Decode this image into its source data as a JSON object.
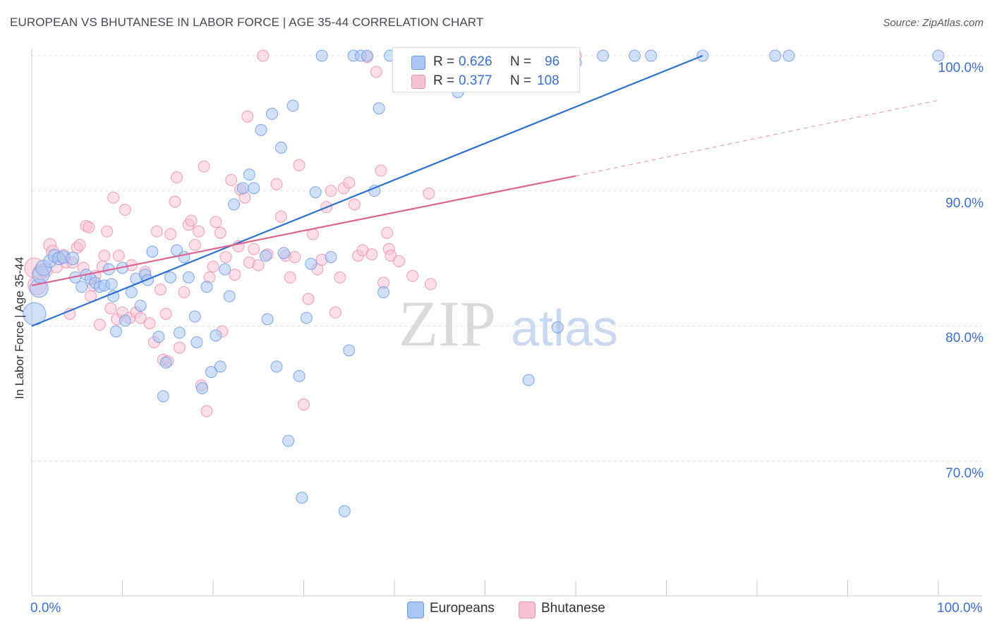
{
  "title": "EUROPEAN VS BHUTANESE IN LABOR FORCE | AGE 35-44 CORRELATION CHART",
  "source": "Source: ZipAtlas.com",
  "watermark": {
    "zip": "ZIP",
    "atlas": "atlas"
  },
  "colors": {
    "europeans": "#6b9be6",
    "europeans_fill": "#a9c6f3",
    "europeans_line": "#2f6fcf",
    "bhutanese": "#ee8fb0",
    "bhutanese_fill": "#f7c3d4",
    "bhutanese_line": "#e0648f",
    "axis_text": "#3a6fcf",
    "grid": "#e3e3e3"
  },
  "legend": {
    "r_label": "R =",
    "n_label": "N =",
    "europeans": {
      "r": "0.626",
      "n": "96"
    },
    "bhutanese": {
      "r": "0.377",
      "n": "108"
    }
  },
  "bottom_legend": {
    "europeans": "Europeans",
    "bhutanese": "Bhutanese"
  },
  "chart_data": {
    "type": "scatter",
    "title": "EUROPEAN VS BHUTANESE IN LABOR FORCE | AGE 35-44 CORRELATION CHART",
    "xlabel": "",
    "ylabel": "In Labor Force | Age 35-44",
    "xlim": [
      0,
      100
    ],
    "ylim": [
      60,
      102
    ],
    "x_tick_labels": [
      "0.0%",
      "100.0%"
    ],
    "y_ticks": [
      70,
      80,
      90,
      100
    ],
    "y_tick_labels": [
      "70.0%",
      "80.0%",
      "90.0%",
      "100.0%"
    ],
    "grid": true,
    "series": [
      {
        "name": "Europeans",
        "r": 0.626,
        "n": 96,
        "trend": {
          "x": [
            0,
            74
          ],
          "y": [
            80.0,
            100.0
          ]
        },
        "points": [
          {
            "x": 0.3,
            "y": 80.9,
            "s": 16
          },
          {
            "x": 0.8,
            "y": 82.8,
            "s": 13
          },
          {
            "x": 1.0,
            "y": 83.8,
            "s": 12
          },
          {
            "x": 1.3,
            "y": 84.3,
            "s": 11
          },
          {
            "x": 2.0,
            "y": 84.8,
            "s": 9
          },
          {
            "x": 2.5,
            "y": 85.2,
            "s": 9
          },
          {
            "x": 3.0,
            "y": 85.0,
            "s": 9
          },
          {
            "x": 3.5,
            "y": 85.1,
            "s": 9
          },
          {
            "x": 4.5,
            "y": 85.0,
            "s": 9
          },
          {
            "x": 4.8,
            "y": 83.6,
            "s": 8
          },
          {
            "x": 5.5,
            "y": 82.9,
            "s": 8
          },
          {
            "x": 6.0,
            "y": 83.8,
            "s": 8
          },
          {
            "x": 6.5,
            "y": 83.5,
            "s": 8
          },
          {
            "x": 7.0,
            "y": 83.2,
            "s": 8
          },
          {
            "x": 7.5,
            "y": 82.9,
            "s": 8
          },
          {
            "x": 8.0,
            "y": 83.0,
            "s": 8
          },
          {
            "x": 8.5,
            "y": 84.2,
            "s": 8
          },
          {
            "x": 8.8,
            "y": 83.1,
            "s": 8
          },
          {
            "x": 9.0,
            "y": 82.2,
            "s": 8
          },
          {
            "x": 9.3,
            "y": 79.6,
            "s": 8
          },
          {
            "x": 10.0,
            "y": 84.3,
            "s": 8
          },
          {
            "x": 10.3,
            "y": 80.4,
            "s": 8
          },
          {
            "x": 11.0,
            "y": 82.5,
            "s": 8
          },
          {
            "x": 11.5,
            "y": 83.5,
            "s": 8
          },
          {
            "x": 12.0,
            "y": 81.5,
            "s": 8
          },
          {
            "x": 12.5,
            "y": 83.8,
            "s": 8
          },
          {
            "x": 12.8,
            "y": 83.4,
            "s": 8
          },
          {
            "x": 13.3,
            "y": 85.5,
            "s": 8
          },
          {
            "x": 14.0,
            "y": 79.2,
            "s": 8
          },
          {
            "x": 14.5,
            "y": 74.8,
            "s": 8
          },
          {
            "x": 14.8,
            "y": 77.3,
            "s": 8
          },
          {
            "x": 15.3,
            "y": 83.6,
            "s": 8
          },
          {
            "x": 16.0,
            "y": 85.6,
            "s": 8
          },
          {
            "x": 16.3,
            "y": 79.5,
            "s": 8
          },
          {
            "x": 16.8,
            "y": 85.1,
            "s": 8
          },
          {
            "x": 17.3,
            "y": 83.6,
            "s": 8
          },
          {
            "x": 18.0,
            "y": 80.7,
            "s": 8
          },
          {
            "x": 18.2,
            "y": 78.8,
            "s": 8
          },
          {
            "x": 18.8,
            "y": 75.4,
            "s": 8
          },
          {
            "x": 19.3,
            "y": 82.9,
            "s": 8
          },
          {
            "x": 19.8,
            "y": 76.6,
            "s": 8
          },
          {
            "x": 20.3,
            "y": 79.3,
            "s": 8
          },
          {
            "x": 20.8,
            "y": 77.0,
            "s": 8
          },
          {
            "x": 21.3,
            "y": 84.2,
            "s": 8
          },
          {
            "x": 21.8,
            "y": 82.2,
            "s": 8
          },
          {
            "x": 22.3,
            "y": 89.0,
            "s": 8
          },
          {
            "x": 23.3,
            "y": 90.2,
            "s": 8
          },
          {
            "x": 24.0,
            "y": 91.2,
            "s": 8
          },
          {
            "x": 24.5,
            "y": 90.2,
            "s": 8
          },
          {
            "x": 25.3,
            "y": 94.5,
            "s": 8
          },
          {
            "x": 25.8,
            "y": 85.2,
            "s": 8
          },
          {
            "x": 26.0,
            "y": 80.5,
            "s": 8
          },
          {
            "x": 26.5,
            "y": 95.7,
            "s": 8
          },
          {
            "x": 27.0,
            "y": 77.0,
            "s": 8
          },
          {
            "x": 27.5,
            "y": 93.2,
            "s": 8
          },
          {
            "x": 27.8,
            "y": 85.4,
            "s": 8
          },
          {
            "x": 28.3,
            "y": 71.5,
            "s": 8
          },
          {
            "x": 28.8,
            "y": 96.3,
            "s": 8
          },
          {
            "x": 29.5,
            "y": 76.3,
            "s": 8
          },
          {
            "x": 29.8,
            "y": 67.3,
            "s": 8
          },
          {
            "x": 30.3,
            "y": 80.6,
            "s": 8
          },
          {
            "x": 30.8,
            "y": 84.6,
            "s": 8
          },
          {
            "x": 31.3,
            "y": 89.9,
            "s": 8
          },
          {
            "x": 32.0,
            "y": 100.0,
            "s": 8
          },
          {
            "x": 33.0,
            "y": 85.1,
            "s": 8
          },
          {
            "x": 34.5,
            "y": 66.3,
            "s": 8
          },
          {
            "x": 35.0,
            "y": 78.2,
            "s": 8
          },
          {
            "x": 35.5,
            "y": 100.0,
            "s": 8
          },
          {
            "x": 36.3,
            "y": 100.0,
            "s": 8
          },
          {
            "x": 37.0,
            "y": 100.0,
            "s": 8
          },
          {
            "x": 37.8,
            "y": 90.0,
            "s": 8
          },
          {
            "x": 38.3,
            "y": 96.1,
            "s": 8
          },
          {
            "x": 38.8,
            "y": 82.5,
            "s": 8
          },
          {
            "x": 39.5,
            "y": 100.0,
            "s": 8
          },
          {
            "x": 40.5,
            "y": 100.0,
            "s": 8
          },
          {
            "x": 42.0,
            "y": 100.0,
            "s": 8
          },
          {
            "x": 45.0,
            "y": 100.0,
            "s": 8
          },
          {
            "x": 47.0,
            "y": 97.3,
            "s": 8
          },
          {
            "x": 49.0,
            "y": 100.0,
            "s": 8
          },
          {
            "x": 51.5,
            "y": 100.0,
            "s": 8
          },
          {
            "x": 54.0,
            "y": 100.0,
            "s": 8
          },
          {
            "x": 54.8,
            "y": 76.0,
            "s": 8
          },
          {
            "x": 55.8,
            "y": 100.0,
            "s": 8
          },
          {
            "x": 58.0,
            "y": 79.9,
            "s": 8
          },
          {
            "x": 60.0,
            "y": 99.5,
            "s": 8
          },
          {
            "x": 63.0,
            "y": 100.0,
            "s": 8
          },
          {
            "x": 66.5,
            "y": 100.0,
            "s": 8
          },
          {
            "x": 68.3,
            "y": 100.0,
            "s": 8
          },
          {
            "x": 74.0,
            "y": 100.0,
            "s": 8
          },
          {
            "x": 82.0,
            "y": 100.0,
            "s": 8
          },
          {
            "x": 83.5,
            "y": 100.0,
            "s": 8
          },
          {
            "x": 100.0,
            "y": 100.0,
            "s": 8
          }
        ]
      },
      {
        "name": "Bhutanese",
        "r": 0.377,
        "n": 108,
        "trend": {
          "x": [
            0,
            60
          ],
          "y": [
            83.0,
            91.1
          ]
        },
        "trend_extension": {
          "x": [
            60,
            100
          ],
          "y": [
            91.1,
            96.7
          ]
        },
        "points": [
          {
            "x": 0.3,
            "y": 84.3,
            "s": 14
          },
          {
            "x": 0.6,
            "y": 83.0,
            "s": 13
          },
          {
            "x": 1.0,
            "y": 84.0,
            "s": 11
          },
          {
            "x": 1.5,
            "y": 84.1,
            "s": 10
          },
          {
            "x": 2.0,
            "y": 86.0,
            "s": 9
          },
          {
            "x": 2.3,
            "y": 85.5,
            "s": 9
          },
          {
            "x": 2.7,
            "y": 84.4,
            "s": 9
          },
          {
            "x": 3.0,
            "y": 85.0,
            "s": 9
          },
          {
            "x": 3.5,
            "y": 85.2,
            "s": 9
          },
          {
            "x": 3.8,
            "y": 84.7,
            "s": 8
          },
          {
            "x": 4.2,
            "y": 80.9,
            "s": 8
          },
          {
            "x": 4.5,
            "y": 84.7,
            "s": 8
          },
          {
            "x": 5.0,
            "y": 85.8,
            "s": 8
          },
          {
            "x": 5.3,
            "y": 86.0,
            "s": 8
          },
          {
            "x": 5.7,
            "y": 84.3,
            "s": 8
          },
          {
            "x": 6.0,
            "y": 87.4,
            "s": 8
          },
          {
            "x": 6.3,
            "y": 87.3,
            "s": 8
          },
          {
            "x": 6.5,
            "y": 82.2,
            "s": 8
          },
          {
            "x": 6.8,
            "y": 83.0,
            "s": 8
          },
          {
            "x": 7.0,
            "y": 83.7,
            "s": 8
          },
          {
            "x": 7.5,
            "y": 80.1,
            "s": 8
          },
          {
            "x": 7.8,
            "y": 84.4,
            "s": 8
          },
          {
            "x": 8.0,
            "y": 85.2,
            "s": 8
          },
          {
            "x": 8.3,
            "y": 87.0,
            "s": 8
          },
          {
            "x": 8.7,
            "y": 81.3,
            "s": 8
          },
          {
            "x": 9.0,
            "y": 89.5,
            "s": 8
          },
          {
            "x": 9.4,
            "y": 80.5,
            "s": 8
          },
          {
            "x": 9.6,
            "y": 85.2,
            "s": 8
          },
          {
            "x": 10.0,
            "y": 81.0,
            "s": 8
          },
          {
            "x": 10.3,
            "y": 88.6,
            "s": 8
          },
          {
            "x": 10.8,
            "y": 80.6,
            "s": 8
          },
          {
            "x": 11.0,
            "y": 84.5,
            "s": 8
          },
          {
            "x": 11.5,
            "y": 81.0,
            "s": 8
          },
          {
            "x": 12.0,
            "y": 80.6,
            "s": 8
          },
          {
            "x": 12.5,
            "y": 84.0,
            "s": 8
          },
          {
            "x": 13.0,
            "y": 80.2,
            "s": 8
          },
          {
            "x": 13.5,
            "y": 78.8,
            "s": 8
          },
          {
            "x": 13.8,
            "y": 87.0,
            "s": 8
          },
          {
            "x": 14.2,
            "y": 82.7,
            "s": 8
          },
          {
            "x": 14.5,
            "y": 77.5,
            "s": 8
          },
          {
            "x": 14.8,
            "y": 80.9,
            "s": 8
          },
          {
            "x": 15.0,
            "y": 77.4,
            "s": 8
          },
          {
            "x": 15.3,
            "y": 86.8,
            "s": 8
          },
          {
            "x": 15.8,
            "y": 89.2,
            "s": 8
          },
          {
            "x": 16.0,
            "y": 91.0,
            "s": 8
          },
          {
            "x": 16.3,
            "y": 78.4,
            "s": 8
          },
          {
            "x": 16.8,
            "y": 82.5,
            "s": 8
          },
          {
            "x": 17.3,
            "y": 87.5,
            "s": 8
          },
          {
            "x": 17.6,
            "y": 87.8,
            "s": 8
          },
          {
            "x": 18.0,
            "y": 86.0,
            "s": 8
          },
          {
            "x": 18.4,
            "y": 87.0,
            "s": 8
          },
          {
            "x": 18.7,
            "y": 75.6,
            "s": 8
          },
          {
            "x": 19.0,
            "y": 91.8,
            "s": 8
          },
          {
            "x": 19.3,
            "y": 73.7,
            "s": 8
          },
          {
            "x": 19.6,
            "y": 83.6,
            "s": 8
          },
          {
            "x": 20.0,
            "y": 84.4,
            "s": 8
          },
          {
            "x": 20.3,
            "y": 87.7,
            "s": 8
          },
          {
            "x": 20.8,
            "y": 86.9,
            "s": 8
          },
          {
            "x": 21.0,
            "y": 79.6,
            "s": 8
          },
          {
            "x": 21.4,
            "y": 85.1,
            "s": 8
          },
          {
            "x": 22.0,
            "y": 90.8,
            "s": 8
          },
          {
            "x": 22.4,
            "y": 83.8,
            "s": 8
          },
          {
            "x": 22.8,
            "y": 85.9,
            "s": 8
          },
          {
            "x": 23.0,
            "y": 90.1,
            "s": 8
          },
          {
            "x": 23.5,
            "y": 89.5,
            "s": 8
          },
          {
            "x": 23.8,
            "y": 95.5,
            "s": 8
          },
          {
            "x": 24.0,
            "y": 84.7,
            "s": 8
          },
          {
            "x": 24.5,
            "y": 85.7,
            "s": 8
          },
          {
            "x": 25.0,
            "y": 84.5,
            "s": 8
          },
          {
            "x": 25.5,
            "y": 100.0,
            "s": 8
          },
          {
            "x": 26.0,
            "y": 85.3,
            "s": 8
          },
          {
            "x": 27.0,
            "y": 90.5,
            "s": 8
          },
          {
            "x": 27.5,
            "y": 88.1,
            "s": 8
          },
          {
            "x": 28.0,
            "y": 85.2,
            "s": 8
          },
          {
            "x": 28.5,
            "y": 83.6,
            "s": 8
          },
          {
            "x": 29.0,
            "y": 85.1,
            "s": 8
          },
          {
            "x": 29.5,
            "y": 91.9,
            "s": 8
          },
          {
            "x": 30.0,
            "y": 74.2,
            "s": 8
          },
          {
            "x": 30.5,
            "y": 82.0,
            "s": 8
          },
          {
            "x": 31.0,
            "y": 86.8,
            "s": 8
          },
          {
            "x": 31.5,
            "y": 84.2,
            "s": 8
          },
          {
            "x": 32.0,
            "y": 84.9,
            "s": 8
          },
          {
            "x": 32.5,
            "y": 88.8,
            "s": 8
          },
          {
            "x": 33.0,
            "y": 90.0,
            "s": 8
          },
          {
            "x": 33.5,
            "y": 81.0,
            "s": 8
          },
          {
            "x": 34.0,
            "y": 83.6,
            "s": 8
          },
          {
            "x": 34.4,
            "y": 90.2,
            "s": 8
          },
          {
            "x": 35.0,
            "y": 90.6,
            "s": 8
          },
          {
            "x": 35.6,
            "y": 89.0,
            "s": 8
          },
          {
            "x": 36.0,
            "y": 85.2,
            "s": 8
          },
          {
            "x": 36.5,
            "y": 85.6,
            "s": 8
          },
          {
            "x": 37.0,
            "y": 99.9,
            "s": 8
          },
          {
            "x": 37.5,
            "y": 85.3,
            "s": 8
          },
          {
            "x": 38.0,
            "y": 98.8,
            "s": 8
          },
          {
            "x": 38.5,
            "y": 91.5,
            "s": 8
          },
          {
            "x": 38.8,
            "y": 83.2,
            "s": 8
          },
          {
            "x": 39.2,
            "y": 86.9,
            "s": 8
          },
          {
            "x": 39.4,
            "y": 85.7,
            "s": 8
          },
          {
            "x": 39.6,
            "y": 85.2,
            "s": 8
          },
          {
            "x": 40.5,
            "y": 84.8,
            "s": 8
          },
          {
            "x": 42.0,
            "y": 83.7,
            "s": 8
          },
          {
            "x": 43.8,
            "y": 89.8,
            "s": 8
          },
          {
            "x": 44.0,
            "y": 83.1,
            "s": 8
          },
          {
            "x": 60.0,
            "y": 100.0,
            "s": 8
          }
        ]
      }
    ]
  }
}
